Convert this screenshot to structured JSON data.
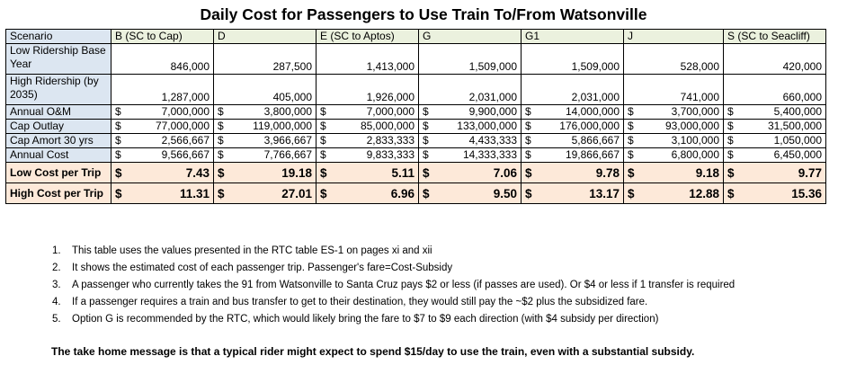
{
  "title": "Daily Cost for Passengers to Use Train To/From Watsonville",
  "header": {
    "label": "Scenario",
    "columns": [
      "B (SC to Cap)",
      "D",
      "E (SC to Aptos)",
      "G",
      "G1",
      "J",
      "S (SC to Seacliff)"
    ]
  },
  "rows": [
    {
      "label": "Low Ridership Base Year",
      "currency": false,
      "values": [
        "846,000",
        "287,500",
        "1,413,000",
        "1,509,000",
        "1,509,000",
        "528,000",
        "420,000"
      ]
    },
    {
      "label": "High Ridership (by 2035)",
      "currency": false,
      "values": [
        "1,287,000",
        "405,000",
        "1,926,000",
        "2,031,000",
        "2,031,000",
        "741,000",
        "660,000"
      ]
    },
    {
      "label": "Annual O&M",
      "currency": true,
      "values": [
        "7,000,000",
        "3,800,000",
        "7,000,000",
        "9,900,000",
        "14,000,000",
        "3,700,000",
        "5,400,000"
      ]
    },
    {
      "label": "Cap Outlay",
      "currency": true,
      "values": [
        "77,000,000",
        "119,000,000",
        "85,000,000",
        "133,000,000",
        "176,000,000",
        "93,000,000",
        "31,500,000"
      ]
    },
    {
      "label": "Cap Amort 30 yrs",
      "currency": true,
      "values": [
        "2,566,667",
        "3,966,667",
        "2,833,333",
        "4,433,333",
        "5,866,667",
        "3,100,000",
        "1,050,000"
      ]
    },
    {
      "label": "Annual Cost",
      "currency": true,
      "values": [
        "9,566,667",
        "7,766,667",
        "9,833,333",
        "14,333,333",
        "19,866,667",
        "6,800,000",
        "6,450,000"
      ]
    },
    {
      "label": "Low Cost per Trip",
      "currency": true,
      "values": [
        "7.43",
        "19.18",
        "5.11",
        "7.06",
        "9.78",
        "9.18",
        "9.77"
      ]
    },
    {
      "label": "High Cost per Trip",
      "currency": true,
      "values": [
        "11.31",
        "27.01",
        "6.96",
        "9.50",
        "13.17",
        "12.88",
        "15.36"
      ]
    }
  ],
  "currency_symbol": "$",
  "colors": {
    "label_bg": "#dce6f1",
    "header_bg": "#ebf1de",
    "cost_bg": "#fde9d9"
  },
  "notes": [
    {
      "num": "1.",
      "text": "This table uses the values presented in the RTC table ES-1 on pages xi and xii"
    },
    {
      "num": "2.",
      "text": "It shows the estimated cost of each passenger trip. Passenger's fare=Cost-Subsidy"
    },
    {
      "num": "3.",
      "text": "A passenger who currently takes the 91 from Watsonville to Santa Cruz pays $2 or less (if passes are used). Or $4 or less if 1 transfer is required"
    },
    {
      "num": "4.",
      "text": "If a passenger requires a train and bus transfer to get to their destination, they would still pay the ~$2 plus the subsidized fare."
    },
    {
      "num": "5.",
      "text": "Option G is recommended by the RTC, which would likely bring the fare to $7 to $9 each direction (with $4 subsidy per direction)"
    }
  ],
  "takeaway": "The take home message is that a typical rider might expect to spend $15/day to use the train, even with a substantial subsidy."
}
